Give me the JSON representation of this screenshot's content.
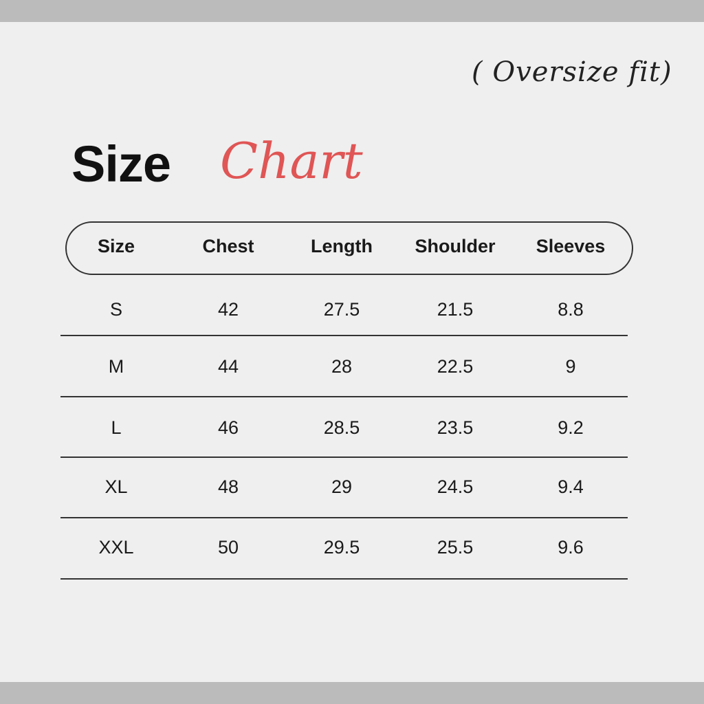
{
  "subtitle": "( Oversize fit)",
  "title": {
    "bold": "Size",
    "script": "Chart"
  },
  "colors": {
    "accent": "#e05555",
    "background": "#efefef",
    "frame": "#bbbbbb"
  },
  "headers": [
    "Size",
    "Chest",
    "Length",
    "Shoulder",
    "Sleeves"
  ],
  "rows": [
    [
      "S",
      "42",
      "27.5",
      "21.5",
      "8.8"
    ],
    [
      "M",
      "44",
      "28",
      "22.5",
      "9"
    ],
    [
      "L",
      "46",
      "28.5",
      "23.5",
      "9.2"
    ],
    [
      "XL",
      "48",
      "29",
      "24.5",
      "9.4"
    ],
    [
      "XXL",
      "50",
      "29.5",
      "25.5",
      "9.6"
    ]
  ]
}
